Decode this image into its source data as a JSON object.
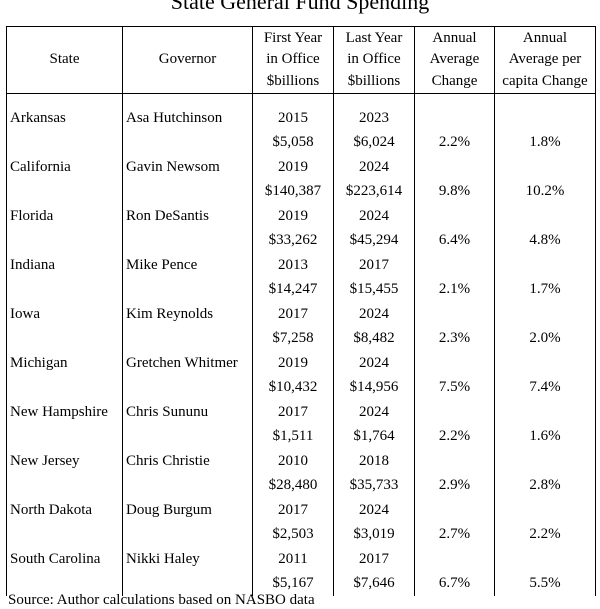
{
  "chart_data": {
    "type": "table",
    "title": "State General Fund Spending",
    "columns": [
      "State",
      "Governor",
      "First Year in Office $billions",
      "Last Year in Office $billions",
      "Annual Average Change",
      "Annual Average per capita Change"
    ],
    "header_lines": [
      [
        "State"
      ],
      [
        "Governor"
      ],
      [
        "First Year",
        "in Office",
        "$billions"
      ],
      [
        "Last Year",
        "in Office",
        "$billions"
      ],
      [
        "Annual",
        "Average",
        "Change"
      ],
      [
        "Annual",
        "Average per",
        "capita Change"
      ]
    ],
    "rows": [
      {
        "state": "Arkansas",
        "governor": "Asa Hutchinson",
        "first_year": "2015",
        "first_amount": "$5,058",
        "last_year": "2023",
        "last_amount": "$6,024",
        "avg_change": "2.2%",
        "per_capita": "1.8%"
      },
      {
        "state": "California",
        "governor": "Gavin Newsom",
        "first_year": "2019",
        "first_amount": "$140,387",
        "last_year": "2024",
        "last_amount": "$223,614",
        "avg_change": "9.8%",
        "per_capita": "10.2%"
      },
      {
        "state": "Florida",
        "governor": "Ron DeSantis",
        "first_year": "2019",
        "first_amount": "$33,262",
        "last_year": "2024",
        "last_amount": "$45,294",
        "avg_change": "6.4%",
        "per_capita": "4.8%"
      },
      {
        "state": "Indiana",
        "governor": "Mike Pence",
        "first_year": "2013",
        "first_amount": "$14,247",
        "last_year": "2017",
        "last_amount": "$15,455",
        "avg_change": "2.1%",
        "per_capita": "1.7%"
      },
      {
        "state": "Iowa",
        "governor": "Kim Reynolds",
        "first_year": "2017",
        "first_amount": "$7,258",
        "last_year": "2024",
        "last_amount": "$8,482",
        "avg_change": "2.3%",
        "per_capita": "2.0%"
      },
      {
        "state": "Michigan",
        "governor": "Gretchen Whitmer",
        "first_year": "2019",
        "first_amount": "$10,432",
        "last_year": "2024",
        "last_amount": "$14,956",
        "avg_change": "7.5%",
        "per_capita": "7.4%"
      },
      {
        "state": "New Hampshire",
        "governor": "Chris Sununu",
        "first_year": "2017",
        "first_amount": "$1,511",
        "last_year": "2024",
        "last_amount": "$1,764",
        "avg_change": "2.2%",
        "per_capita": "1.6%"
      },
      {
        "state": "New Jersey",
        "governor": "Chris Christie",
        "first_year": "2010",
        "first_amount": "$28,480",
        "last_year": "2018",
        "last_amount": "$35,733",
        "avg_change": "2.9%",
        "per_capita": "2.8%"
      },
      {
        "state": "North Dakota",
        "governor": "Doug Burgum",
        "first_year": "2017",
        "first_amount": "$2,503",
        "last_year": "2024",
        "last_amount": "$3,019",
        "avg_change": "2.7%",
        "per_capita": "2.2%"
      },
      {
        "state": "South Carolina",
        "governor": "Nikki Haley",
        "first_year": "2011",
        "first_amount": "$5,167",
        "last_year": "2017",
        "last_amount": "$7,646",
        "avg_change": "6.7%",
        "per_capita": "5.5%"
      }
    ],
    "source": "Source: Author calculations based on NASBO data"
  }
}
